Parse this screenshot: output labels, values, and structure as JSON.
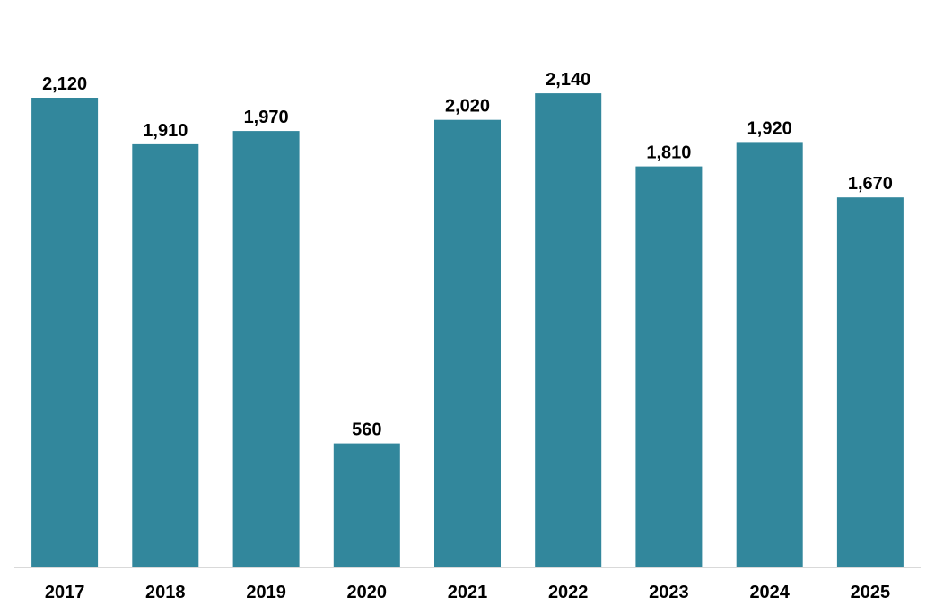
{
  "chart_data": {
    "type": "bar",
    "title": "",
    "xlabel": "",
    "ylabel": "",
    "categories": [
      "2017",
      "2018",
      "2019",
      "2020",
      "2021",
      "2022",
      "2023",
      "2024",
      "2025"
    ],
    "values": [
      2120,
      1910,
      1970,
      560,
      2020,
      2140,
      1810,
      1920,
      1670
    ],
    "value_labels": [
      "2,120",
      "1,910",
      "1,970",
      "560",
      "2,020",
      "2,140",
      "1,810",
      "1,920",
      "1,670"
    ],
    "ylim": [
      0,
      2560
    ],
    "grid": false,
    "legend": "none",
    "colors": {
      "bar": "#32879C",
      "axis": "#d9d9d9"
    }
  }
}
